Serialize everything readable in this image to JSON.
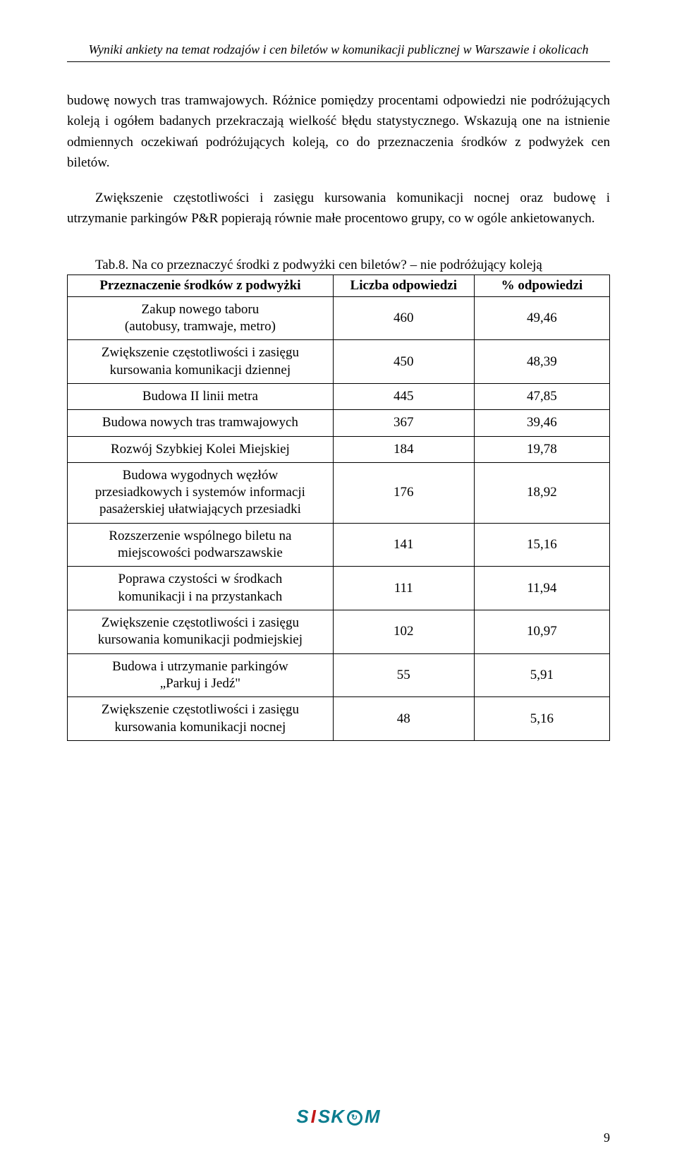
{
  "header": {
    "title": "Wyniki ankiety na temat rodzajów i cen biletów w komunikacji publicznej w Warszawie i okolicach"
  },
  "body": {
    "paragraph1": "budowę nowych tras tramwajowych. Różnice pomiędzy procentami odpowiedzi nie podróżujących koleją i ogółem badanych przekraczają wielkość błędu statystycznego. Wskazują one na istnienie odmiennych oczekiwań podróżujących koleją, co do przeznaczenia środków z podwyżek cen biletów.",
    "paragraph2": "Zwiększenie częstotliwości i zasięgu kursowania komunikacji nocnej oraz budowę i utrzymanie parkingów P&R popierają równie małe procentowo grupy, co w ogóle ankietowanych."
  },
  "table": {
    "caption": "Tab.8. Na co przeznaczyć środki z podwyżki cen biletów? – nie podróżujący koleją",
    "columns": {
      "c1": "Przeznaczenie środków z podwyżki",
      "c2": "Liczba odpowiedzi",
      "c3": "% odpowiedzi"
    },
    "rows": [
      {
        "label": "Zakup nowego taboru\n(autobusy, tramwaje, metro)",
        "count": "460",
        "pct": "49,46"
      },
      {
        "label": "Zwiększenie częstotliwości i zasięgu\nkursowania komunikacji dziennej",
        "count": "450",
        "pct": "48,39"
      },
      {
        "label": "Budowa II linii metra",
        "count": "445",
        "pct": "47,85"
      },
      {
        "label": "Budowa nowych tras tramwajowych",
        "count": "367",
        "pct": "39,46"
      },
      {
        "label": "Rozwój Szybkiej Kolei Miejskiej",
        "count": "184",
        "pct": "19,78"
      },
      {
        "label": "Budowa wygodnych węzłów\nprzesiadkowych i systemów informacji\npasażerskiej ułatwiających przesiadki",
        "count": "176",
        "pct": "18,92"
      },
      {
        "label": "Rozszerzenie wspólnego biletu na\nmiejscowości podwarszawskie",
        "count": "141",
        "pct": "15,16"
      },
      {
        "label": "Poprawa czystości w środkach\nkomunikacji i na przystankach",
        "count": "111",
        "pct": "11,94"
      },
      {
        "label": "Zwiększenie częstotliwości i zasięgu\nkursowania komunikacji podmiejskiej",
        "count": "102",
        "pct": "10,97"
      },
      {
        "label": "Budowa i utrzymanie parkingów\n„Parkuj i Jedź\"",
        "count": "55",
        "pct": "5,91"
      },
      {
        "label": "Zwiększenie częstotliwości i zasięgu\nkursowania komunikacji nocnej",
        "count": "48",
        "pct": "5,16"
      }
    ]
  },
  "footer": {
    "page_number": "9",
    "logo_text_1": "S",
    "logo_text_2": "I",
    "logo_text_3": "SK",
    "logo_text_5": "M"
  }
}
